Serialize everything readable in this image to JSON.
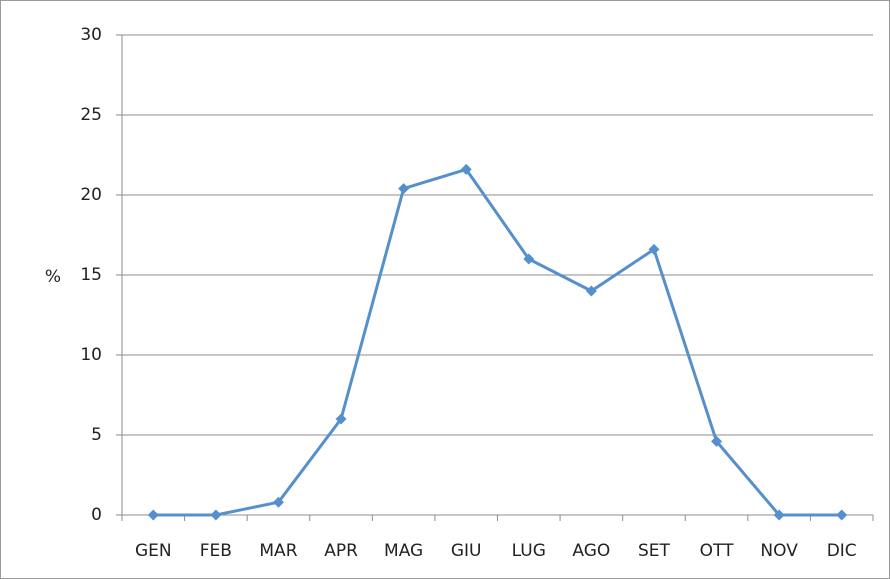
{
  "chart_data": {
    "type": "line",
    "ylabel": "%",
    "categories": [
      "GEN",
      "FEB",
      "MAR",
      "APR",
      "MAG",
      "GIU",
      "LUG",
      "AGO",
      "SET",
      "OTT",
      "NOV",
      "DIC"
    ],
    "series": [
      {
        "color": "#5590cc",
        "values": [
          0,
          0,
          0.8,
          6,
          20.4,
          21.6,
          16,
          14,
          16.6,
          4.6,
          0,
          0
        ]
      }
    ],
    "ylim": [
      0,
      30
    ],
    "yticks": [
      0,
      5,
      10,
      15,
      20,
      25,
      30
    ],
    "grid": true
  }
}
